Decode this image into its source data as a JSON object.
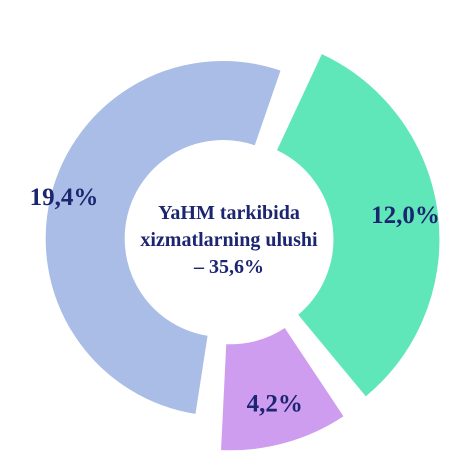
{
  "chart_data": {
    "type": "donut",
    "center_text": "YaHM tarkibida xizmatlarning ulushi – 35,6%",
    "categories": [
      null,
      null,
      null
    ],
    "values": [
      12.0,
      4.2,
      19.4
    ],
    "value_labels": [
      "12,0%",
      "4,2%",
      "19,4%"
    ],
    "colors": [
      "#5fe6b9",
      "#cf9df0",
      "#a9bde6"
    ]
  }
}
